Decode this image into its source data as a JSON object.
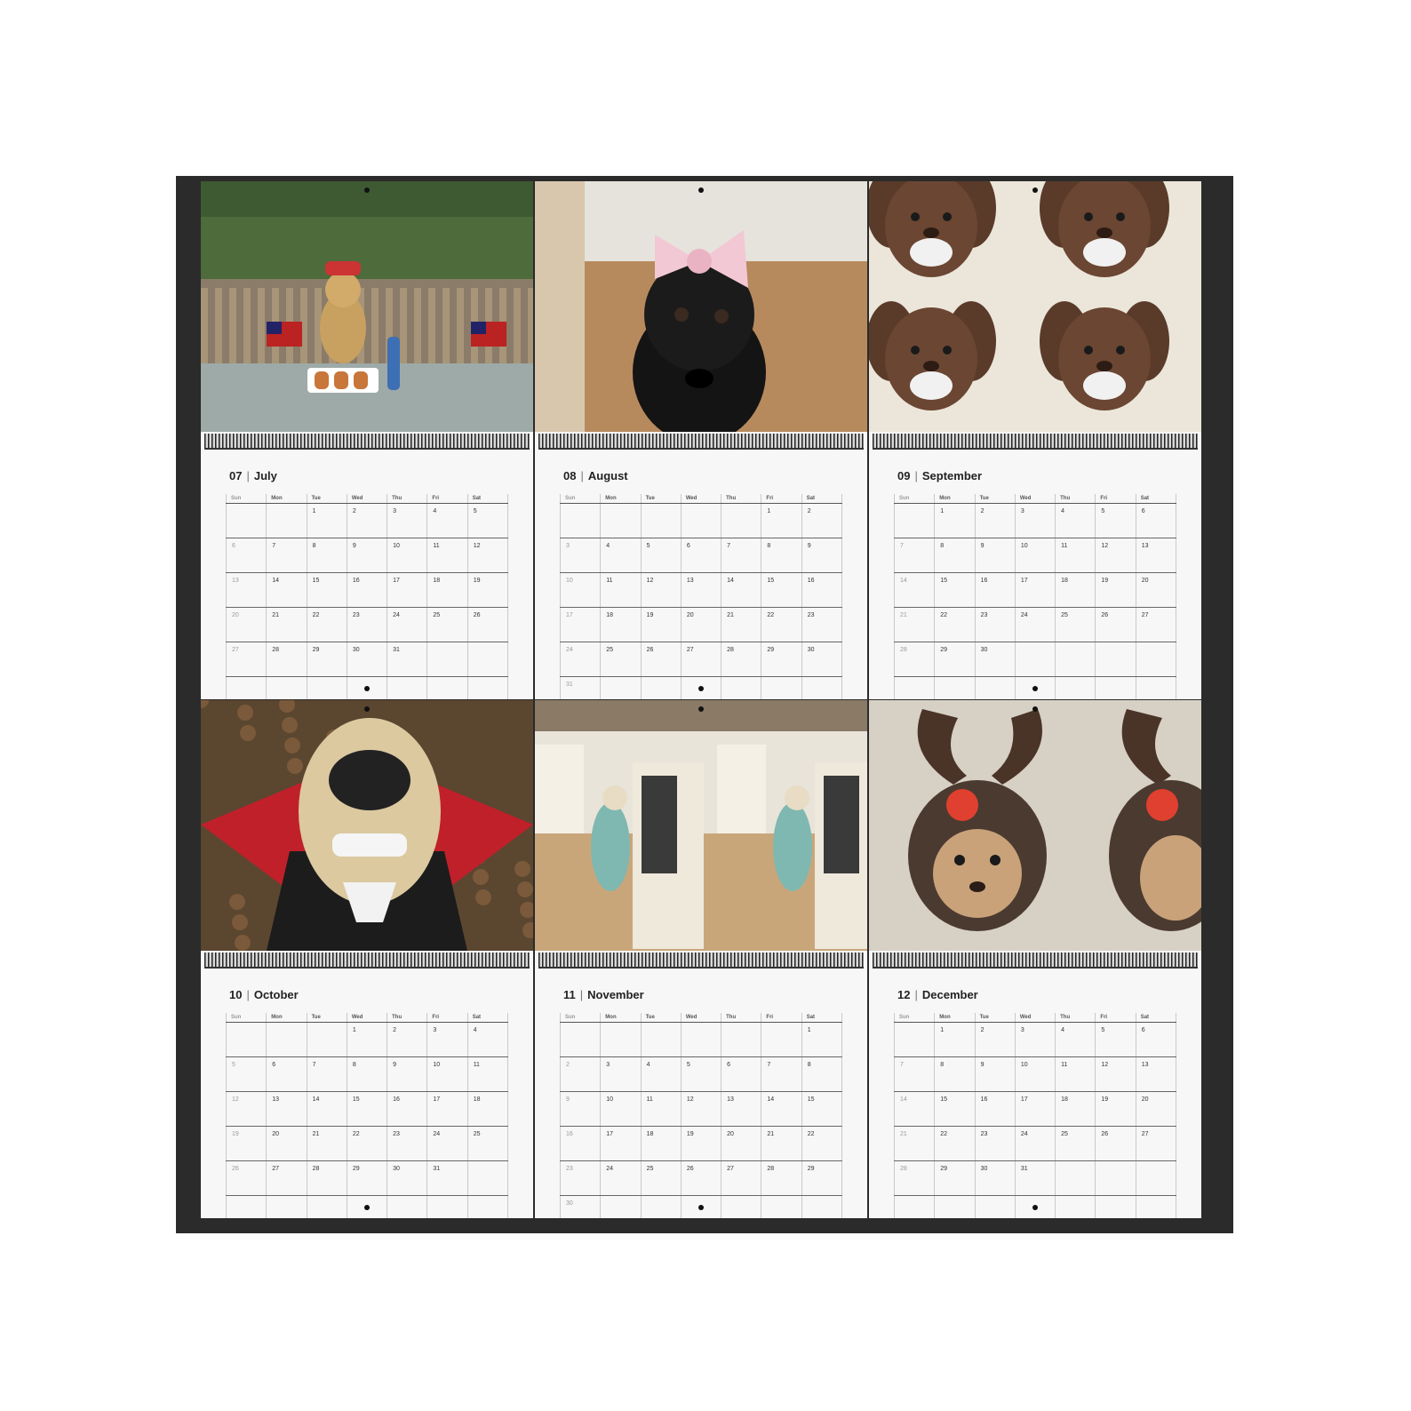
{
  "weekdays": [
    "Sun",
    "Mon",
    "Tue",
    "Wed",
    "Thu",
    "Fri",
    "Sat"
  ],
  "months": [
    {
      "number": "07",
      "name": "July",
      "photo": "dog-with-american-flags-photo",
      "weeks": [
        [
          "",
          "",
          "1",
          "2",
          "3",
          "4",
          "5"
        ],
        [
          "6",
          "7",
          "8",
          "9",
          "10",
          "11",
          "12"
        ],
        [
          "13",
          "14",
          "15",
          "16",
          "17",
          "18",
          "19"
        ],
        [
          "20",
          "21",
          "22",
          "23",
          "24",
          "25",
          "26"
        ],
        [
          "27",
          "28",
          "29",
          "30",
          "31",
          "",
          ""
        ],
        [
          "",
          "",
          "",
          "",
          "",
          "",
          ""
        ]
      ]
    },
    {
      "number": "08",
      "name": "August",
      "photo": "black-puppy-pink-bow-photo",
      "weeks": [
        [
          "",
          "",
          "",
          "",
          "",
          "1",
          "2"
        ],
        [
          "3",
          "4",
          "5",
          "6",
          "7",
          "8",
          "9"
        ],
        [
          "10",
          "11",
          "12",
          "13",
          "14",
          "15",
          "16"
        ],
        [
          "17",
          "18",
          "19",
          "20",
          "21",
          "22",
          "23"
        ],
        [
          "24",
          "25",
          "26",
          "27",
          "28",
          "29",
          "30"
        ],
        [
          "31",
          "",
          "",
          "",
          "",
          "",
          ""
        ]
      ]
    },
    {
      "number": "09",
      "name": "September",
      "photo": "brown-puppy-big-ears-photo",
      "weeks": [
        [
          "",
          "1",
          "2",
          "3",
          "4",
          "5",
          "6"
        ],
        [
          "7",
          "8",
          "9",
          "10",
          "11",
          "12",
          "13"
        ],
        [
          "14",
          "15",
          "16",
          "17",
          "18",
          "19",
          "20"
        ],
        [
          "21",
          "22",
          "23",
          "24",
          "25",
          "26",
          "27"
        ],
        [
          "28",
          "29",
          "30",
          "",
          "",
          "",
          ""
        ],
        [
          "",
          "",
          "",
          "",
          "",
          "",
          ""
        ]
      ]
    },
    {
      "number": "10",
      "name": "October",
      "photo": "dog-vampire-costume-photo",
      "weeks": [
        [
          "",
          "",
          "",
          "1",
          "2",
          "3",
          "4"
        ],
        [
          "5",
          "6",
          "7",
          "8",
          "9",
          "10",
          "11"
        ],
        [
          "12",
          "13",
          "14",
          "15",
          "16",
          "17",
          "18"
        ],
        [
          "19",
          "20",
          "21",
          "22",
          "23",
          "24",
          "25"
        ],
        [
          "26",
          "27",
          "28",
          "29",
          "30",
          "31",
          ""
        ],
        [
          "",
          "",
          "",
          "",
          "",
          "",
          ""
        ]
      ]
    },
    {
      "number": "11",
      "name": "November",
      "photo": "dog-in-kitchen-photo",
      "weeks": [
        [
          "",
          "",
          "",
          "",
          "",
          "",
          "1"
        ],
        [
          "2",
          "3",
          "4",
          "5",
          "6",
          "7",
          "8"
        ],
        [
          "9",
          "10",
          "11",
          "12",
          "13",
          "14",
          "15"
        ],
        [
          "16",
          "17",
          "18",
          "19",
          "20",
          "21",
          "22"
        ],
        [
          "23",
          "24",
          "25",
          "26",
          "27",
          "28",
          "29"
        ],
        [
          "30",
          "",
          "",
          "",
          "",
          "",
          ""
        ]
      ]
    },
    {
      "number": "12",
      "name": "December",
      "photo": "dog-reindeer-hat-photo",
      "weeks": [
        [
          "",
          "1",
          "2",
          "3",
          "4",
          "5",
          "6"
        ],
        [
          "7",
          "8",
          "9",
          "10",
          "11",
          "12",
          "13"
        ],
        [
          "14",
          "15",
          "16",
          "17",
          "18",
          "19",
          "20"
        ],
        [
          "21",
          "22",
          "23",
          "24",
          "25",
          "26",
          "27"
        ],
        [
          "28",
          "29",
          "30",
          "31",
          "",
          "",
          ""
        ],
        [
          "",
          "",
          "",
          "",
          "",
          "",
          ""
        ]
      ]
    }
  ]
}
